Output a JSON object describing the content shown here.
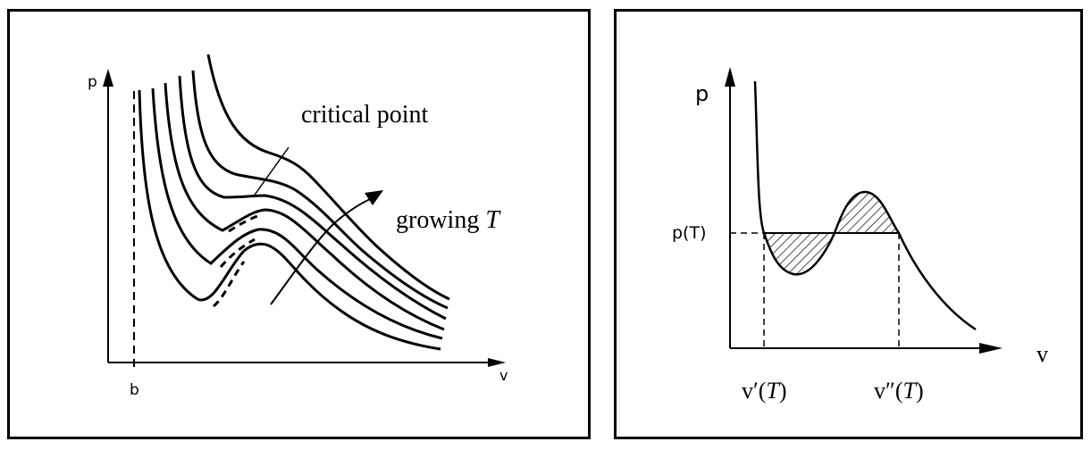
{
  "left_figure": {
    "y_axis_label": "p",
    "x_axis_label": "v",
    "x_marker_label": "b",
    "annotation_critical": "critical point",
    "annotation_growing_prefix": "growing ",
    "annotation_growing_var": "T"
  },
  "right_figure": {
    "y_axis_label": "p",
    "x_axis_label": "v",
    "pressure_level_label": "p(T)",
    "v_prime_label": "v′(",
    "v_double_prime_label": "v″(",
    "var_T": "T",
    "close_paren": ")"
  }
}
